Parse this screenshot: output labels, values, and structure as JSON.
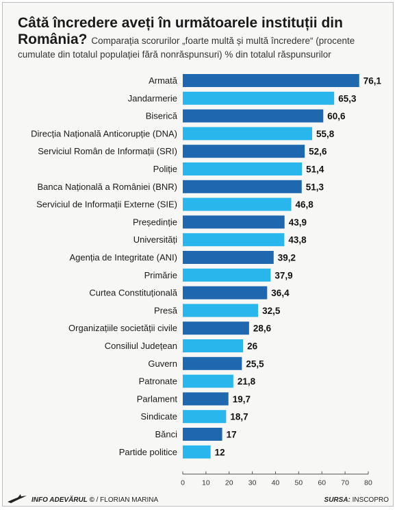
{
  "header": {
    "title_line1": "Câtă încredere aveți în următoarele instituții din",
    "title_line2": "România?",
    "subtitle_part1": "Comparația scorurilor „foarte multă și multă încredere“ (procente",
    "subtitle_part2": "cumulate din totalul populației fără nonrăspunsuri)  % din totalul răspunsurilor"
  },
  "footer": {
    "credit_brand": "INFO ADEVĂRUL ©",
    "credit_author": " / FLORIAN MARINA",
    "source_label": "SURSA:",
    "source_name": " INSCOPRO"
  },
  "colors": {
    "dark": "#1f68b0",
    "light": "#29b6ec"
  },
  "chart_data": {
    "type": "bar",
    "orientation": "horizontal",
    "categories": [
      "Armată",
      "Jandarmerie",
      "Biserică",
      "Direcția Națională Anticorupție (DNA)",
      "Serviciul Român de Informații (SRI)",
      "Poliție",
      "Banca Națională a României (BNR)",
      "Serviciul de Informații Externe (SIE)",
      "Președinție",
      "Universități",
      "Agenția de Integritate (ANI)",
      "Primărie",
      "Curtea Constituțională",
      "Presă",
      "Organizațiile societății civile",
      "Consiliul Județean",
      "Guvern",
      "Patronate",
      "Parlament",
      "Sindicate",
      "Bănci",
      "Partide politice"
    ],
    "values": [
      76.1,
      65.3,
      60.6,
      55.8,
      52.6,
      51.4,
      51.3,
      46.8,
      43.9,
      43.8,
      39.2,
      37.9,
      36.4,
      32.5,
      28.6,
      26,
      25.5,
      21.8,
      19.7,
      18.7,
      17,
      12
    ],
    "value_labels": [
      "76,1",
      "65,3",
      "60,6",
      "55,8",
      "52,6",
      "51,4",
      "51,3",
      "46,8",
      "43,9",
      "43,8",
      "39,2",
      "37,9",
      "36,4",
      "32,5",
      "28,6",
      "26",
      "25,5",
      "21,8",
      "19,7",
      "18,7",
      "17",
      "12"
    ],
    "xlim": [
      0,
      80
    ],
    "xticks": [
      0,
      10,
      20,
      30,
      40,
      50,
      60,
      70,
      80
    ],
    "grid": false,
    "legend": "none"
  }
}
